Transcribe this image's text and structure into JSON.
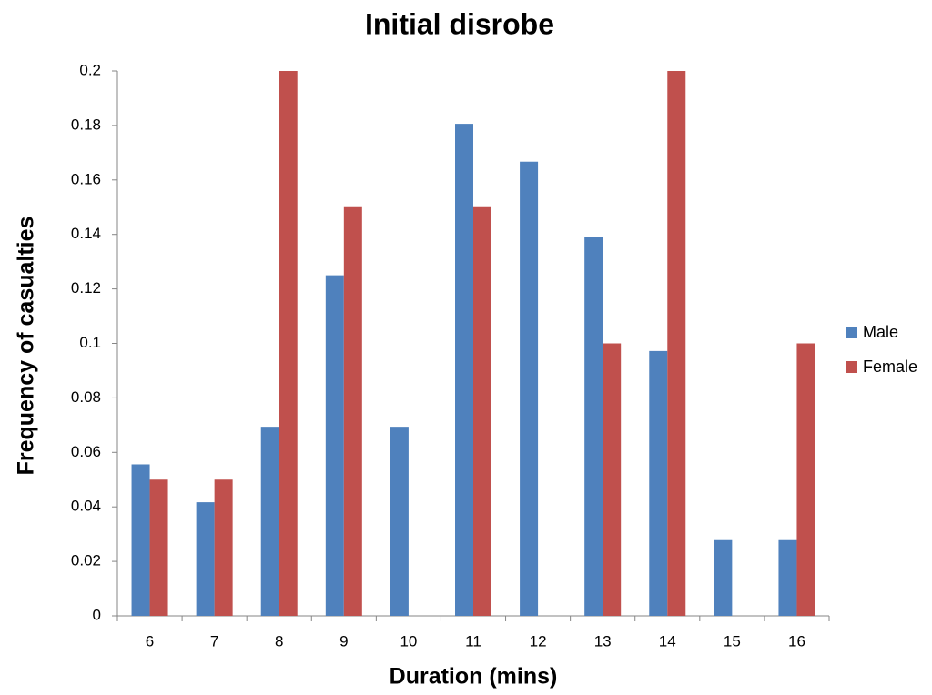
{
  "chart_data": {
    "type": "bar",
    "title": "Initial disrobe",
    "x_label": "Duration (mins)",
    "y_label": "Frequency of casualties",
    "categories": [
      "6",
      "7",
      "8",
      "9",
      "10",
      "11",
      "12",
      "13",
      "14",
      "15",
      "16"
    ],
    "series": [
      {
        "name": "Male",
        "color": "#4f81bd",
        "values": [
          0.0556,
          0.0417,
          0.0694,
          0.125,
          0.0694,
          0.1806,
          0.1667,
          0.1389,
          0.0972,
          0.0278,
          0.0278
        ]
      },
      {
        "name": "Female",
        "color": "#c0504d",
        "values": [
          0.05,
          0.05,
          0.2,
          0.15,
          0,
          0.15,
          0,
          0.1,
          0.2,
          0,
          0.1
        ]
      }
    ],
    "ylim": [
      0,
      0.2
    ],
    "yticks": [
      0,
      0.02,
      0.04,
      0.06,
      0.08,
      0.1,
      0.12,
      0.14,
      0.16,
      0.18,
      0.2
    ],
    "grid": false,
    "legend": "right"
  }
}
